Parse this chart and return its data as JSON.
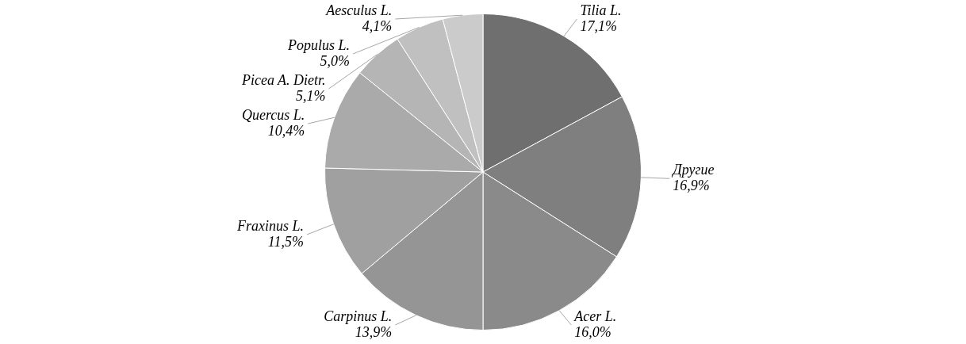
{
  "chart_data": {
    "type": "pie",
    "categories": [
      "Tilia L.",
      "Другие",
      "Acer L.",
      "Carpinus L.",
      "Fraxinus L.",
      "Quercus L.",
      "Picea A. Dietr.",
      "Populus L.",
      "Aesculus L."
    ],
    "values": [
      17.1,
      16.9,
      16.0,
      13.9,
      11.5,
      10.4,
      5.1,
      5.0,
      4.1
    ],
    "colors": [
      "#6f6f6f",
      "#7f7f7f",
      "#8a8a8a",
      "#959595",
      "#a0a0a0",
      "#aaaaaa",
      "#b5b5b5",
      "#c0c0c0",
      "#cbcbcb"
    ],
    "value_labels": [
      "17,1%",
      "16,9%",
      "16,0%",
      "13,9%",
      "11,5%",
      "10,4%",
      "5,1%",
      "5,0%",
      "4,1%"
    ]
  }
}
